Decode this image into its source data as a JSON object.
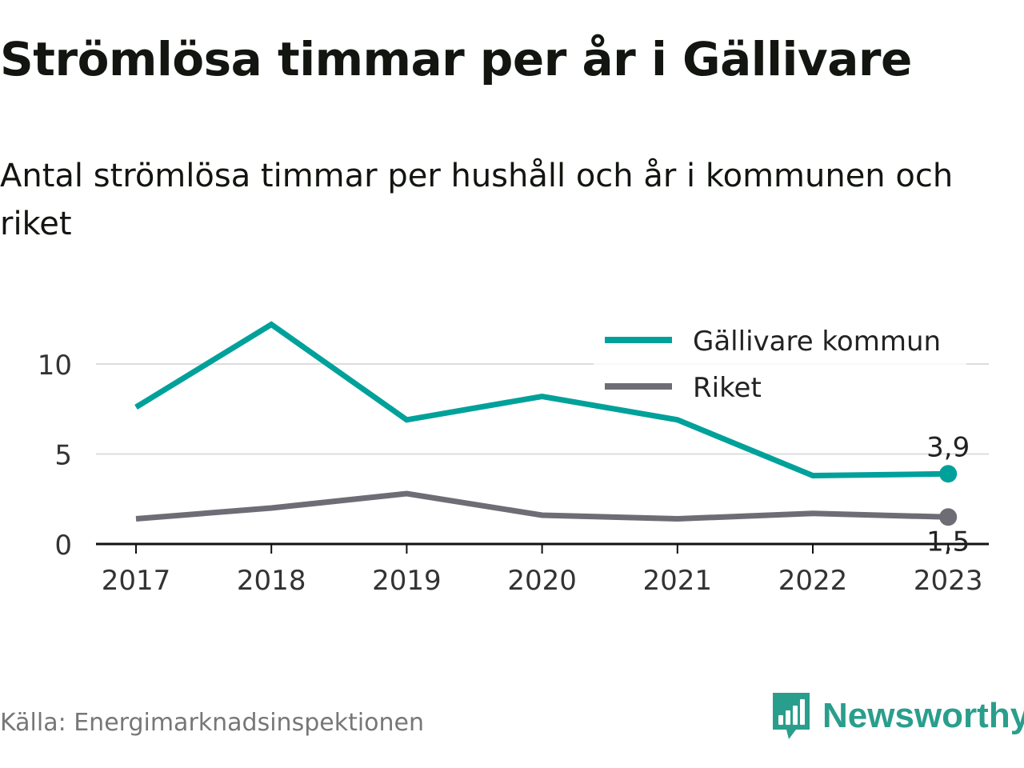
{
  "title": "Strömlösa timmar per år i Gällivare",
  "subtitle": "Antal strömlösa timmar per hushåll och år i kommunen och riket",
  "source": "Källa: Energimarknadsinspektionen",
  "brand": {
    "name": "Newsworthy",
    "icon": "newsworthy-logo-icon",
    "color": "#2a9e8c"
  },
  "chart_data": {
    "type": "line",
    "x": [
      "2017",
      "2018",
      "2019",
      "2020",
      "2021",
      "2022",
      "2023"
    ],
    "ylim": [
      0,
      12
    ],
    "yticks": [
      0,
      5,
      10
    ],
    "grid": true,
    "legend_position": "top-right",
    "series": [
      {
        "name": "Gällivare kommun",
        "color": "#00a19a",
        "values": [
          7.6,
          12.2,
          6.9,
          8.2,
          6.9,
          3.8,
          3.9
        ],
        "end_label": "3,9"
      },
      {
        "name": "Riket",
        "color": "#6e6d75",
        "values": [
          1.4,
          2.0,
          2.8,
          1.6,
          1.4,
          1.7,
          1.5
        ],
        "end_label": "1,5"
      }
    ]
  }
}
